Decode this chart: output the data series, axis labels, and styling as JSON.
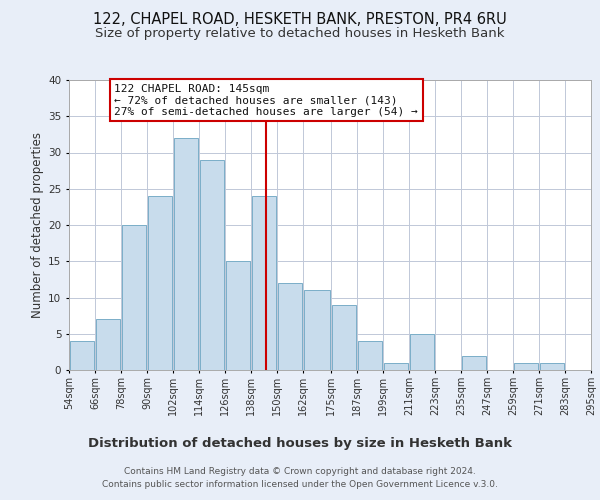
{
  "title1": "122, CHAPEL ROAD, HESKETH BANK, PRESTON, PR4 6RU",
  "title2": "Size of property relative to detached houses in Hesketh Bank",
  "xlabel": "Distribution of detached houses by size in Hesketh Bank",
  "ylabel": "Number of detached properties",
  "bar_left_edges": [
    54,
    66,
    78,
    90,
    102,
    114,
    126,
    138,
    150,
    162,
    175,
    187,
    199,
    211,
    223,
    235,
    247,
    259,
    271,
    283
  ],
  "bar_heights": [
    4,
    7,
    20,
    24,
    32,
    29,
    15,
    24,
    12,
    11,
    9,
    4,
    1,
    5,
    0,
    2,
    0,
    1,
    1,
    0
  ],
  "bar_widths": [
    12,
    12,
    12,
    12,
    12,
    12,
    12,
    12,
    12,
    13,
    12,
    12,
    12,
    12,
    12,
    12,
    12,
    12,
    12,
    12
  ],
  "tick_labels": [
    "54sqm",
    "66sqm",
    "78sqm",
    "90sqm",
    "102sqm",
    "114sqm",
    "126sqm",
    "138sqm",
    "150sqm",
    "162sqm",
    "175sqm",
    "187sqm",
    "199sqm",
    "211sqm",
    "223sqm",
    "235sqm",
    "247sqm",
    "259sqm",
    "271sqm",
    "283sqm",
    "295sqm"
  ],
  "tick_positions": [
    54,
    66,
    78,
    90,
    102,
    114,
    126,
    138,
    150,
    162,
    175,
    187,
    199,
    211,
    223,
    235,
    247,
    259,
    271,
    283,
    295
  ],
  "bar_color": "#c8dcec",
  "bar_edge_color": "#7aaec8",
  "vline_x": 145,
  "vline_color": "#cc0000",
  "ylim": [
    0,
    40
  ],
  "xlim": [
    54,
    295
  ],
  "annotation_title": "122 CHAPEL ROAD: 145sqm",
  "annotation_line1": "← 72% of detached houses are smaller (143)",
  "annotation_line2": "27% of semi-detached houses are larger (54) →",
  "footer1": "Contains HM Land Registry data © Crown copyright and database right 2024.",
  "footer2": "Contains public sector information licensed under the Open Government Licence v.3.0.",
  "background_color": "#e8eef8",
  "plot_background": "#ffffff",
  "grid_color": "#c0c8d8",
  "title1_fontsize": 10.5,
  "title2_fontsize": 9.5,
  "xlabel_fontsize": 9.5,
  "ylabel_fontsize": 8.5,
  "tick_fontsize": 7,
  "annotation_fontsize": 8,
  "footer_fontsize": 6.5
}
